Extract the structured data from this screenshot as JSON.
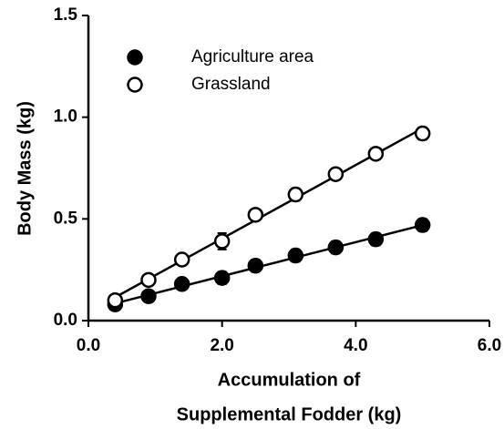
{
  "chart_data": {
    "type": "scatter",
    "x_label": [
      "Accumulation of",
      "Supplemental  Fodder (kg)"
    ],
    "y_label": "Body Mass (kg)",
    "x": [
      0.4,
      0.9,
      1.4,
      2.0,
      2.5,
      3.1,
      3.7,
      4.3,
      5.0
    ],
    "series": [
      {
        "name": "Agriculture area",
        "color": "#000000",
        "marker": "filled",
        "values": [
          0.08,
          0.12,
          0.18,
          0.21,
          0.27,
          0.32,
          0.36,
          0.4,
          0.47
        ],
        "errors": [
          0.02,
          0.02,
          0.02,
          0.03,
          0.03,
          0.03,
          0.03,
          0.03,
          0.03
        ]
      },
      {
        "name": "Grassland",
        "color": "#000000",
        "marker": "open",
        "values": [
          0.1,
          0.2,
          0.3,
          0.39,
          0.52,
          0.62,
          0.72,
          0.82,
          0.92
        ],
        "errors": [
          0.02,
          0.02,
          0.02,
          0.04,
          0.02,
          0.03,
          0.02,
          0.02,
          0.03
        ]
      }
    ],
    "trendline": true,
    "xlim": [
      0,
      6
    ],
    "ylim": [
      0,
      1.5
    ],
    "xticks": [
      {
        "value": 0,
        "label": "0.0"
      },
      {
        "value": 2,
        "label": "2.0"
      },
      {
        "value": 4,
        "label": "4.0"
      },
      {
        "value": 6,
        "label": "6.0"
      }
    ],
    "yticks": [
      {
        "value": 0,
        "label": "0.0"
      },
      {
        "value": 0.5,
        "label": "0.5"
      },
      {
        "value": 1,
        "label": "1.0"
      },
      {
        "value": 1.5,
        "label": "1.5"
      }
    ],
    "legend": "upper left"
  }
}
